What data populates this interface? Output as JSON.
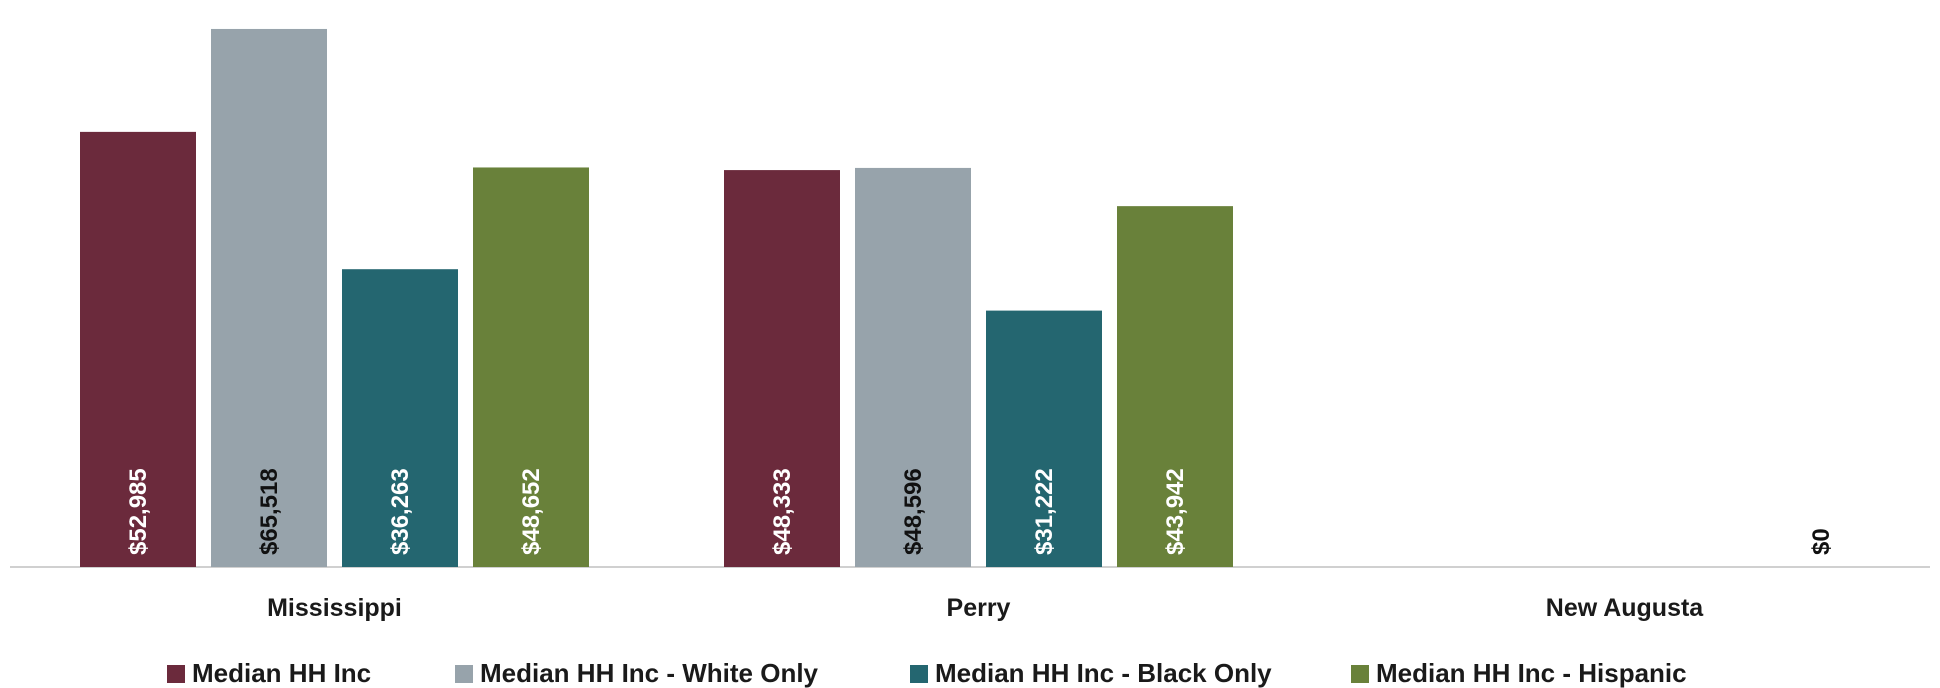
{
  "chart_data": {
    "type": "bar",
    "categories": [
      "Mississippi",
      "Perry",
      "New Augusta"
    ],
    "series": [
      {
        "name": "Median HH Inc",
        "color": "#6b2a3c",
        "values": [
          52985,
          48333,
          null
        ],
        "labels": [
          "$52,985",
          "$48,333",
          ""
        ],
        "label_color": "#ffffff"
      },
      {
        "name": "Median HH Inc - White Only",
        "color": "#97a3ab",
        "values": [
          65518,
          48596,
          null
        ],
        "labels": [
          "$65,518",
          "$48,596",
          ""
        ],
        "label_color": "#111111"
      },
      {
        "name": "Median HH Inc - Black Only",
        "color": "#246670",
        "values": [
          36263,
          31222,
          null
        ],
        "labels": [
          "$36,263",
          "$31,222",
          ""
        ],
        "label_color": "#ffffff"
      },
      {
        "name": "Median HH Inc - Hispanic",
        "color": "#69813a",
        "values": [
          48652,
          43942,
          0
        ],
        "labels": [
          "$48,652",
          "$43,942",
          "$0"
        ],
        "label_color": "#ffffff"
      }
    ],
    "zero_label_color": "#111111",
    "title": "",
    "xlabel": "",
    "ylabel": "",
    "ylim": [
      0,
      66000
    ],
    "grid": false,
    "legend_position": "bottom"
  }
}
